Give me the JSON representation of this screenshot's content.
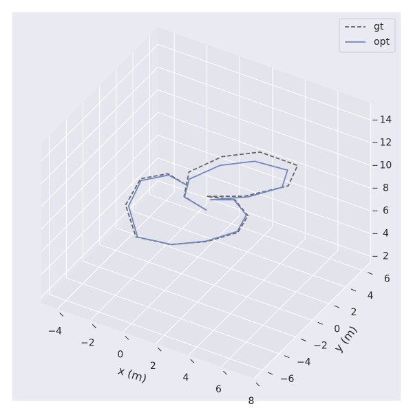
{
  "chart_data": {
    "type": "line3d",
    "xlabel": "x (m)",
    "ylabel": "y (m)",
    "xlim": [
      -5,
      8
    ],
    "ylim": [
      -7,
      7
    ],
    "zlim": [
      1.5,
      15.5
    ],
    "xticks": [
      {
        "value": -4,
        "label": "−4"
      },
      {
        "value": -2,
        "label": "−2"
      },
      0,
      2,
      4,
      6,
      8
    ],
    "yticks": [
      {
        "value": -6,
        "label": "−6"
      },
      {
        "value": -4,
        "label": "−4"
      },
      {
        "value": -2,
        "label": "−2"
      },
      0,
      2,
      4,
      6
    ],
    "zticks": [
      2,
      4,
      6,
      8,
      10,
      12,
      14
    ],
    "grid": true,
    "legend": "upper right",
    "series": [
      {
        "name": "gt",
        "color": "#666666",
        "linestyle": "dashed",
        "x": [
          1.08,
          -0.55,
          -0.2,
          0.6,
          2.1,
          4.4,
          4.9,
          3.4,
          1.7,
          1.9,
          3.2,
          3.5,
          2.5,
          1.0,
          -0.9,
          -2.8,
          -3.3,
          -2.3,
          -1.0
        ],
        "y": [
          0.88,
          1.4,
          1.3,
          3.7,
          5.3,
          5.3,
          3.2,
          0.9,
          -0.3,
          2.7,
          1.7,
          -0.1,
          -1.9,
          -3.3,
          -3.7,
          -1.2,
          1.6,
          2.9,
          2.5
        ],
        "z": [
          7,
          7,
          9.4,
          9.4,
          9.4,
          9.4,
          9.4,
          9.4,
          9.4,
          7,
          7,
          7,
          7,
          7,
          7,
          7,
          7,
          7,
          7
        ]
      },
      {
        "name": "opt",
        "color": "#6f87c2",
        "linestyle": "solid",
        "x": [
          1.08,
          -0.5,
          -0.07,
          0.7,
          2.07,
          3.96,
          4.48,
          3.37,
          1.79,
          1.85,
          3.09,
          3.43,
          2.47,
          1.08,
          -0.81,
          -2.61,
          -3.2,
          -2.21,
          -0.91
        ],
        "y": [
          0.88,
          1.35,
          1.07,
          3.27,
          4.72,
          4.97,
          3.28,
          1.34,
          -0.1,
          2.67,
          1.72,
          -0.03,
          -1.86,
          -3.25,
          -3.67,
          -1.21,
          1.44,
          2.79,
          2.47
        ],
        "z": [
          7,
          7,
          9,
          9,
          9,
          9,
          9,
          9,
          9,
          7,
          7,
          7,
          7,
          7,
          7,
          7,
          7,
          7,
          7
        ]
      }
    ]
  }
}
